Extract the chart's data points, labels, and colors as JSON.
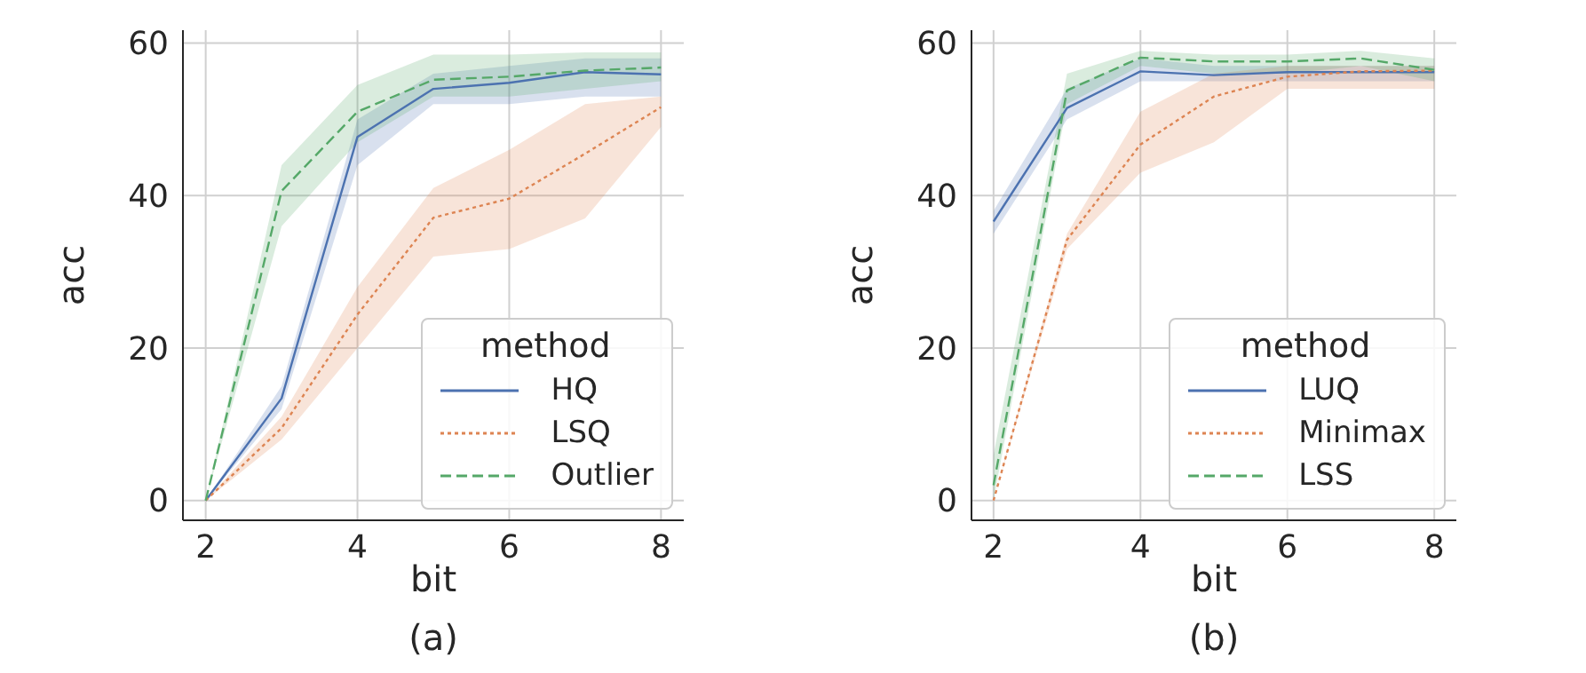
{
  "chart_data": [
    {
      "type": "line",
      "xlabel": "bit",
      "ylabel": "acc",
      "annotations": [
        "(a)"
      ],
      "legend_title": "method",
      "legend": "bottom right",
      "grid": true,
      "marker": "none",
      "x": [
        2,
        3,
        4,
        5,
        6,
        7,
        8
      ],
      "xlim": [
        1.7,
        8.3
      ],
      "xticks": [
        2,
        4,
        6,
        8
      ],
      "ylim": [
        -2.6,
        61.7
      ],
      "yticks": [
        0,
        20,
        40,
        60
      ],
      "series": [
        {
          "name": "HQ",
          "color": "#4c72b0",
          "line_style": "solid",
          "values": [
            0,
            13.4,
            47.7,
            54,
            54.8,
            56.2,
            55.9
          ],
          "lower": [
            0,
            12,
            44,
            52,
            52,
            53,
            53
          ],
          "upper": [
            0,
            15,
            50,
            56,
            57,
            58,
            58
          ]
        },
        {
          "name": "LSQ",
          "color": "#dd8452",
          "line_style": "dotted",
          "values": [
            0,
            9.5,
            24.4,
            37.1,
            39.6,
            45.5,
            51.6
          ],
          "lower": [
            0,
            8,
            20,
            32,
            33,
            37,
            49
          ],
          "upper": [
            0,
            11,
            28,
            41,
            46,
            52,
            53
          ]
        },
        {
          "name": "Outlier",
          "color": "#55a868",
          "line_style": "dashed",
          "values": [
            0,
            40.6,
            51,
            55.2,
            55.6,
            56.4,
            56.8
          ],
          "lower": [
            0,
            36,
            47,
            53,
            53,
            54,
            55
          ],
          "upper": [
            0,
            44,
            54.5,
            58.5,
            58.5,
            58.8,
            58.8
          ]
        }
      ]
    },
    {
      "type": "line",
      "xlabel": "bit",
      "ylabel": "acc",
      "annotations": [
        "(b)"
      ],
      "legend_title": "method",
      "legend": "bottom right",
      "grid": true,
      "marker": "none",
      "x": [
        2,
        3,
        4,
        5,
        6,
        7,
        8
      ],
      "xlim": [
        1.7,
        8.3
      ],
      "xticks": [
        2,
        4,
        6,
        8
      ],
      "ylim": [
        -2.6,
        61.7
      ],
      "yticks": [
        0,
        20,
        40,
        60
      ],
      "series": [
        {
          "name": "LUQ",
          "color": "#4c72b0",
          "line_style": "solid",
          "values": [
            36.6,
            51.5,
            56.3,
            55.8,
            56.2,
            56.2,
            56.2
          ],
          "lower": [
            35,
            50,
            55,
            55,
            55,
            55,
            55
          ],
          "upper": [
            38,
            54,
            58,
            57,
            57,
            57,
            57
          ]
        },
        {
          "name": "Minimax",
          "color": "#dd8452",
          "line_style": "dotted",
          "values": [
            0,
            34.2,
            46.7,
            53,
            55.6,
            56.3,
            56.4
          ],
          "lower": [
            0,
            33,
            43,
            47,
            54,
            54,
            54
          ],
          "upper": [
            0,
            35,
            51,
            56,
            57,
            57,
            57
          ]
        },
        {
          "name": "LSS",
          "color": "#55a868",
          "line_style": "dashed",
          "values": [
            2,
            53.8,
            58.1,
            57.6,
            57.6,
            58,
            56.5
          ],
          "lower": [
            0,
            52,
            57,
            56,
            56,
            57,
            55
          ],
          "upper": [
            6,
            56,
            59,
            58.5,
            58.5,
            59,
            58
          ]
        }
      ]
    }
  ]
}
